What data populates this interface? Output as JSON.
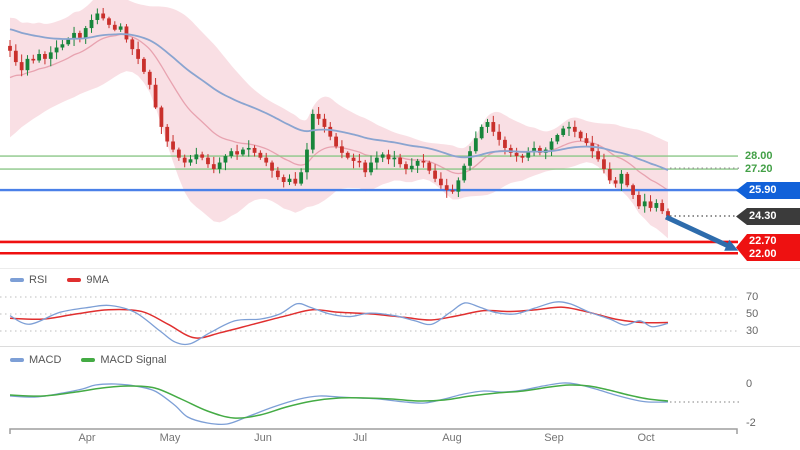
{
  "chart_data": [
    {
      "type": "candlestick",
      "name": "price-chart",
      "x_range_months": [
        "Apr",
        "May",
        "Jun",
        "Jul",
        "Aug",
        "Sep",
        "Oct"
      ],
      "first_open": 34.8,
      "candles_close": [
        34.5,
        33.8,
        33.3,
        34.0,
        33.9,
        34.3,
        34.0,
        34.4,
        34.7,
        34.9,
        35.2,
        35.6,
        35.3,
        35.9,
        36.4,
        36.8,
        36.5,
        36.1,
        35.8,
        36.0,
        35.2,
        34.6,
        34.0,
        33.2,
        32.4,
        31.0,
        29.8,
        28.9,
        28.4,
        27.9,
        27.6,
        27.8,
        28.1,
        27.9,
        27.5,
        27.2,
        27.6,
        28.0,
        28.3,
        28.1,
        28.4,
        28.5,
        28.2,
        27.9,
        27.6,
        27.1,
        26.7,
        26.4,
        26.6,
        26.3,
        27.0,
        28.4,
        30.6,
        30.3,
        29.8,
        29.2,
        28.6,
        28.2,
        27.9,
        27.7,
        27.6,
        27.0,
        27.6,
        27.9,
        28.1,
        27.8,
        27.9,
        27.5,
        27.2,
        27.4,
        27.7,
        27.6,
        27.1,
        26.6,
        26.2,
        25.9,
        25.8,
        26.5,
        27.4,
        28.3,
        29.1,
        29.8,
        30.1,
        29.5,
        29.0,
        28.5,
        28.2,
        28.0,
        27.9,
        28.3,
        28.5,
        28.2,
        28.4,
        28.9,
        29.3,
        29.7,
        29.8,
        29.5,
        29.1,
        28.8,
        28.3,
        27.8,
        27.2,
        26.5,
        26.3,
        26.9,
        26.2,
        25.6,
        24.9,
        25.2,
        24.8,
        25.1,
        24.6,
        24.3
      ],
      "colors": {
        "up_candle": "#17853b",
        "down_candle": "#c9302c",
        "bollinger_fill": "rgba(240,170,185,0.38)",
        "bollinger_mid": "#e8a3b0",
        "long_ma": "#8aa4d0"
      },
      "levels": [
        {
          "label": "28.00",
          "value": 28.0,
          "style": "solid",
          "color": "#8cc788",
          "thickness": 1.4,
          "label_style": "text"
        },
        {
          "label": "27.20",
          "value": 27.2,
          "style": "solid",
          "color": "#8cc788",
          "thickness": 1.4,
          "label_style": "text"
        },
        {
          "label": "25.90",
          "value": 25.9,
          "style": "solid",
          "color": "#4a80e8",
          "thickness": 2.4,
          "label_style": "tag",
          "tag_bg": "#1161d9"
        },
        {
          "label": "24.30",
          "value": 24.3,
          "style": "dotted-extension",
          "color": "#6b6b6b",
          "thickness": 1.4,
          "label_style": "tag",
          "tag_bg": "#3b3b3b"
        },
        {
          "label": "22.70",
          "value": 22.7,
          "style": "solid",
          "color": "#ef1010",
          "thickness": 2.6,
          "label_style": "tag",
          "tag_bg": "#ee1111"
        },
        {
          "label": "22.00",
          "value": 22.0,
          "style": "solid",
          "color": "#ef1010",
          "thickness": 2.6,
          "label_style": "tag",
          "tag_bg": "#ee1111"
        }
      ],
      "annotations": [
        {
          "type": "trend-arrow",
          "from_price": 24.3,
          "to_price": 22.4,
          "color": "#2e6cac"
        },
        {
          "type": "dotted-extension",
          "value": 27.25,
          "color": "#9a9a9a"
        }
      ]
    },
    {
      "type": "line",
      "name": "rsi-panel",
      "gridlines": [
        70,
        50,
        30
      ],
      "ylim": [
        10,
        90
      ],
      "series": [
        {
          "name": "RSI",
          "color": "#7d9fd6",
          "points": [
            [
              0,
              48
            ],
            [
              0.03,
              38
            ],
            [
              0.076,
              52
            ],
            [
              0.122,
              58
            ],
            [
              0.152,
              60
            ],
            [
              0.19,
              52
            ],
            [
              0.228,
              30
            ],
            [
              0.251,
              17
            ],
            [
              0.274,
              15
            ],
            [
              0.304,
              28
            ],
            [
              0.342,
              42
            ],
            [
              0.38,
              44
            ],
            [
              0.41,
              50
            ],
            [
              0.436,
              62
            ],
            [
              0.456,
              58
            ],
            [
              0.486,
              50
            ],
            [
              0.517,
              47
            ],
            [
              0.547,
              51
            ],
            [
              0.585,
              48
            ],
            [
              0.615,
              42
            ],
            [
              0.641,
              38
            ],
            [
              0.669,
              52
            ],
            [
              0.691,
              63
            ],
            [
              0.714,
              58
            ],
            [
              0.737,
              52
            ],
            [
              0.767,
              50
            ],
            [
              0.798,
              57
            ],
            [
              0.828,
              64
            ],
            [
              0.851,
              62
            ],
            [
              0.881,
              52
            ],
            [
              0.912,
              44
            ],
            [
              0.934,
              37
            ],
            [
              0.957,
              42
            ],
            [
              0.976,
              35
            ],
            [
              1,
              39
            ]
          ]
        },
        {
          "name": "9MA",
          "color": "#e02f2f",
          "points": [
            [
              0,
              45
            ],
            [
              0.05,
              44
            ],
            [
              0.1,
              50
            ],
            [
              0.15,
              55
            ],
            [
              0.2,
              53
            ],
            [
              0.24,
              38
            ],
            [
              0.28,
              22
            ],
            [
              0.32,
              28
            ],
            [
              0.37,
              38
            ],
            [
              0.42,
              48
            ],
            [
              0.46,
              55
            ],
            [
              0.5,
              52
            ],
            [
              0.55,
              50
            ],
            [
              0.6,
              46
            ],
            [
              0.64,
              43
            ],
            [
              0.68,
              48
            ],
            [
              0.72,
              54
            ],
            [
              0.76,
              53
            ],
            [
              0.8,
              55
            ],
            [
              0.84,
              58
            ],
            [
              0.88,
              52
            ],
            [
              0.92,
              44
            ],
            [
              0.96,
              40
            ],
            [
              1,
              40
            ]
          ]
        }
      ]
    },
    {
      "type": "line",
      "name": "macd-panel",
      "axis_labels": [
        {
          "text": "0",
          "value": 0
        },
        {
          "text": "-2",
          "value": -2
        }
      ],
      "end_extension_value": -0.85,
      "series": [
        {
          "name": "MACD",
          "color": "#7d9fd6",
          "points": [
            [
              0,
              -0.55
            ],
            [
              0.04,
              -0.6
            ],
            [
              0.08,
              -0.4
            ],
            [
              0.11,
              -0.2
            ],
            [
              0.13,
              0
            ],
            [
              0.16,
              0.05
            ],
            [
              0.19,
              -0.05
            ],
            [
              0.22,
              -0.3
            ],
            [
              0.25,
              -1.0
            ],
            [
              0.27,
              -1.6
            ],
            [
              0.3,
              -1.9
            ],
            [
              0.33,
              -1.95
            ],
            [
              0.36,
              -1.6
            ],
            [
              0.4,
              -1.1
            ],
            [
              0.44,
              -0.7
            ],
            [
              0.47,
              -0.55
            ],
            [
              0.5,
              -0.6
            ],
            [
              0.53,
              -0.65
            ],
            [
              0.56,
              -0.7
            ],
            [
              0.6,
              -0.85
            ],
            [
              0.63,
              -0.9
            ],
            [
              0.66,
              -0.7
            ],
            [
              0.69,
              -0.45
            ],
            [
              0.72,
              -0.3
            ],
            [
              0.75,
              -0.35
            ],
            [
              0.78,
              -0.25
            ],
            [
              0.81,
              -0.05
            ],
            [
              0.84,
              0.1
            ],
            [
              0.86,
              0.05
            ],
            [
              0.89,
              -0.2
            ],
            [
              0.92,
              -0.5
            ],
            [
              0.95,
              -0.75
            ],
            [
              0.97,
              -0.85
            ],
            [
              1,
              -0.85
            ]
          ]
        },
        {
          "name": "MACD Signal",
          "color": "#44ab44",
          "points": [
            [
              0,
              -0.5
            ],
            [
              0.05,
              -0.55
            ],
            [
              0.1,
              -0.35
            ],
            [
              0.14,
              -0.15
            ],
            [
              0.18,
              -0.05
            ],
            [
              0.22,
              -0.15
            ],
            [
              0.26,
              -0.7
            ],
            [
              0.3,
              -1.3
            ],
            [
              0.34,
              -1.65
            ],
            [
              0.38,
              -1.5
            ],
            [
              0.42,
              -1.1
            ],
            [
              0.46,
              -0.8
            ],
            [
              0.5,
              -0.65
            ],
            [
              0.54,
              -0.65
            ],
            [
              0.58,
              -0.7
            ],
            [
              0.62,
              -0.8
            ],
            [
              0.66,
              -0.75
            ],
            [
              0.7,
              -0.55
            ],
            [
              0.74,
              -0.4
            ],
            [
              0.78,
              -0.3
            ],
            [
              0.82,
              -0.1
            ],
            [
              0.85,
              0
            ],
            [
              0.88,
              -0.05
            ],
            [
              0.91,
              -0.25
            ],
            [
              0.94,
              -0.5
            ],
            [
              0.97,
              -0.7
            ],
            [
              1,
              -0.8
            ]
          ]
        }
      ]
    }
  ]
}
